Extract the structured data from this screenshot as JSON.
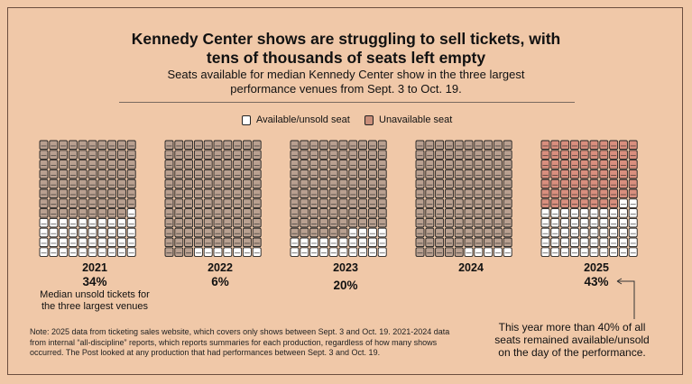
{
  "header": {
    "title_line1": "Kennedy Center shows are struggling to sell tickets, with",
    "title_line2": "tens of thousands of seats left empty",
    "subtitle_line1": "Seats available for median Kennedy Center show in the three largest",
    "subtitle_line2": "performance venues from Sept. 3 to Oct. 19."
  },
  "legend": {
    "available_label": "Available/unsold seat",
    "unavailable_label": "Unavailable seat"
  },
  "colors": {
    "background": "#f0c8a8",
    "available": "#ffffff",
    "unavailable_past": "#b9a090",
    "unavailable_2025": "#d98f7e",
    "outline": "#222222"
  },
  "chart_data": {
    "type": "waffle",
    "title": "Kennedy Center shows are struggling to sell tickets, with tens of thousands of seats left empty",
    "grid": {
      "rows": 12,
      "cols": 10,
      "total_seats": 120
    },
    "series": [
      {
        "year": "2021",
        "pct_label": "34%",
        "available_seats": 41,
        "unavailable_seats": 79
      },
      {
        "year": "2022",
        "pct_label": "6%",
        "available_seats": 7,
        "unavailable_seats": 113
      },
      {
        "year": "2023",
        "pct_label": "20%",
        "available_seats": 24,
        "unavailable_seats": 96
      },
      {
        "year": "2024",
        "pct_label": "",
        "available_seats": 5,
        "unavailable_seats": 115
      },
      {
        "year": "2025",
        "pct_label": "43%",
        "available_seats": 52,
        "unavailable_seats": 68
      }
    ]
  },
  "annotations": {
    "median_note_line1": "Median unsold tickets for",
    "median_note_line2": "the three largest venues",
    "callout_line1": "This year more than 40% of all",
    "callout_line2": "seats remained available/unsold",
    "callout_line3": "on the day of the performance."
  },
  "footnote": {
    "line1": "Note: 2025 data from ticketing sales website, which covers only shows between Sept. 3 and Oct. 19. 2021-2024 data",
    "line2": "from internal “all-discipline” reports, which reports summaries for each production, regardless of how many shows",
    "line3": "occurred. The Post looked at any production that had performances between Sept. 3 and Oct. 19."
  }
}
